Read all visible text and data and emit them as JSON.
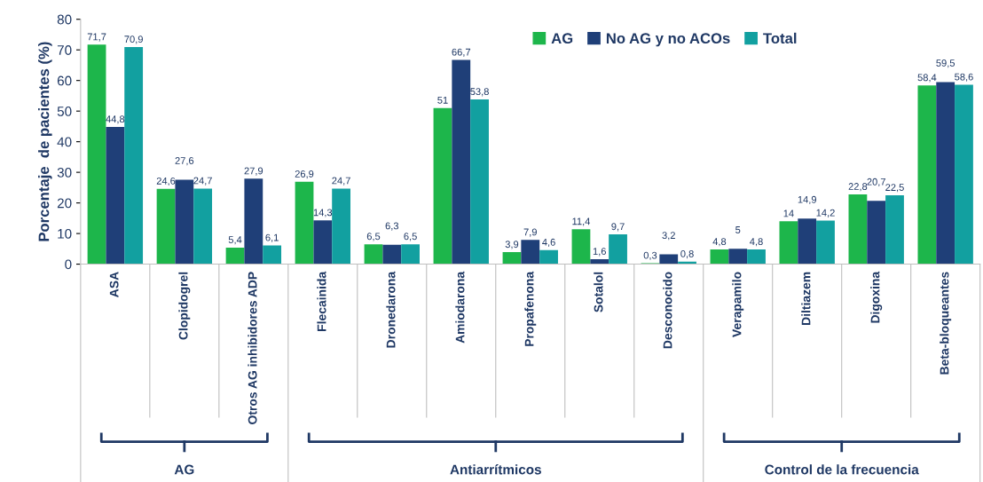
{
  "chart_data": {
    "type": "bar",
    "ylabel": "Porcentaje  de pacientes (%)",
    "categories": [
      "ASA",
      "Clopidogrel",
      "Otros AG inhibidores ADP",
      "Flecainida",
      "Dronedarona",
      "Amiodarona",
      "Propafenona",
      "Sotalol",
      "Desconocido",
      "Verapamilo",
      "Diltiazem",
      "Digoxina",
      "Beta-bloqueantes"
    ],
    "series": [
      {
        "name": "AG",
        "color": "#1db64b",
        "values": [
          71.7,
          24.6,
          5.4,
          26.9,
          6.5,
          51,
          3.9,
          11.4,
          0.3,
          4.8,
          14,
          22.8,
          58.4
        ],
        "value_labels": [
          "71,7",
          "24,6",
          "5,4",
          "26,9",
          "6,5",
          "51",
          "3,9",
          "11,4",
          "0,3",
          "4,8",
          "14",
          "22,8",
          "58,4"
        ]
      },
      {
        "name": "No AG y no ACOs",
        "color": "#1f3f78",
        "values": [
          44.8,
          27.6,
          27.9,
          14.3,
          6.3,
          66.7,
          7.9,
          1.6,
          3.2,
          5,
          14.9,
          20.7,
          59.5
        ],
        "value_labels": [
          "44,8",
          "27,6",
          "27,9",
          "14,3",
          "6,3",
          "66,7",
          "7,9",
          "1,6",
          "3,2",
          "5",
          "14,9",
          "20,7",
          "59,5"
        ]
      },
      {
        "name": "Total",
        "color": "#12a0a0",
        "values": [
          70.9,
          24.7,
          6.1,
          24.7,
          6.5,
          53.8,
          4.6,
          9.7,
          0.8,
          4.8,
          14.2,
          22.5,
          58.6
        ],
        "value_labels": [
          "70,9",
          "24,7",
          "6,1",
          "24,7",
          "6,5",
          "53,8",
          "4,6",
          "9,7",
          "0,8",
          "4,8",
          "14,2",
          "22,5",
          "58,6"
        ]
      }
    ],
    "ylim": [
      0,
      80
    ],
    "yticks": [
      0,
      10,
      20,
      30,
      40,
      50,
      60,
      70,
      80
    ],
    "legend": "top",
    "annotations": [
      "AG",
      "Antiarrítmicos",
      "Control de la frecuencia"
    ]
  }
}
